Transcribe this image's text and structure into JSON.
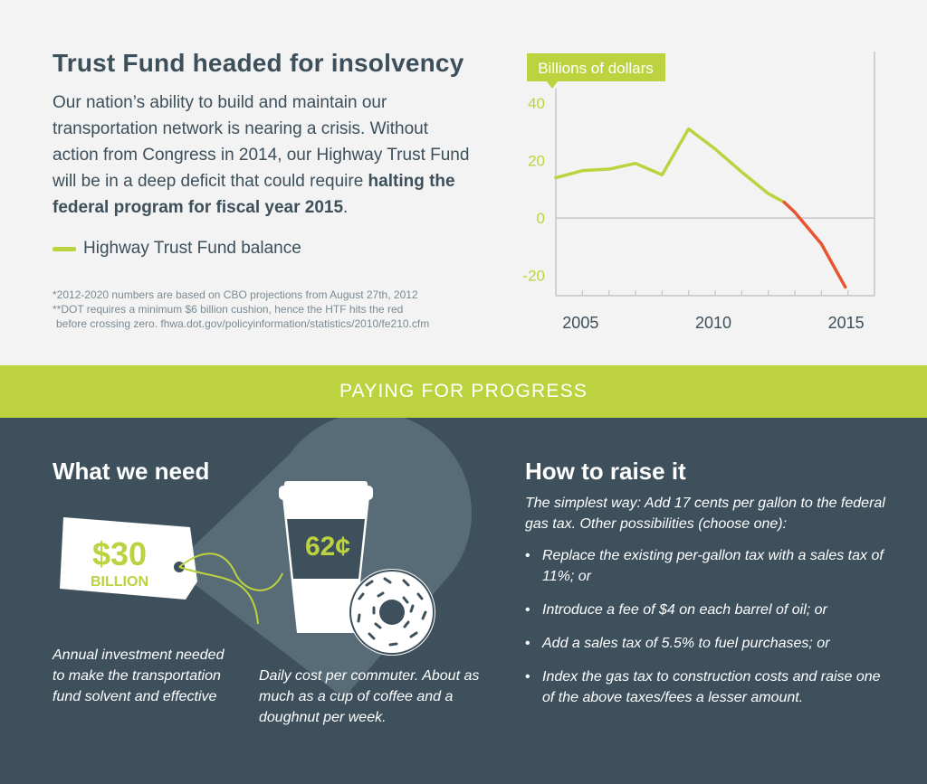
{
  "top": {
    "title": "Trust Fund headed for insolvency",
    "intro_text": "Our nation’s ability to build and maintain our transportation network is nearing a crisis. Without action from Congress in 2014, our Highway Trust Fund will be in a deep deficit that could require ",
    "intro_bold": "halting the federal program for fiscal year 2015",
    "intro_end": ".",
    "legend_label": "Highway Trust Fund balance",
    "note1": "*2012-2020 numbers are based on CBO projections from August 27th, 2012",
    "note2": "**DOT requires a minimum $6 billion cushion, hence the HTF hits the red",
    "note3": "before crossing zero. fhwa.dot.gov/policyinformation/statistics/2010/fe210.cfm"
  },
  "chart_data": {
    "type": "line",
    "ylabel": "Billions of dollars",
    "xlim": [
      2004,
      2016
    ],
    "ylim": [
      -27,
      45
    ],
    "xticks": [
      2005,
      2010,
      2015
    ],
    "yticks": [
      40,
      20,
      0,
      -20
    ],
    "grid": false,
    "series": [
      {
        "name": "Highway Trust Fund balance",
        "color": "#bcd33f",
        "x": [
          2004,
          2005,
          2006,
          2007,
          2008,
          2009,
          2010,
          2011,
          2012,
          2012.6
        ],
        "values": [
          14,
          16.5,
          17,
          19,
          15,
          31,
          24,
          16,
          8.5,
          5.5
        ]
      },
      {
        "color": "#e8542f",
        "x": [
          2012.6,
          2013,
          2014,
          2014.9
        ],
        "values": [
          5.5,
          2,
          -9,
          -24
        ]
      }
    ]
  },
  "banner": {
    "label": "PAYING FOR PROGRESS"
  },
  "need": {
    "heading": "What we need",
    "tag_amount": "$30",
    "tag_unit": "BILLION",
    "cup_price": "62¢",
    "caption_left": "Annual investment needed to make the transportation fund solvent and effective",
    "caption_right": "Daily cost per commuter. About as much as a cup of coffee and a doughnut per week."
  },
  "raise": {
    "heading": "How to raise it",
    "intro": "The simplest way: Add 17 cents per gallon to the federal gas tax. Other possibilities (choose one):",
    "options": [
      "Replace the existing per-gallon tax with a sales tax of 11%; or",
      "Introduce a fee of $4 on each barrel of oil; or",
      "Add a sales tax of 5.5% to fuel purchases; or",
      "Index the gas tax to construction costs and raise one of the above taxes/fees a lesser amount."
    ]
  },
  "colors": {
    "accent": "#bcd33f",
    "deficit": "#e8542f",
    "dark": "#3d505c"
  }
}
